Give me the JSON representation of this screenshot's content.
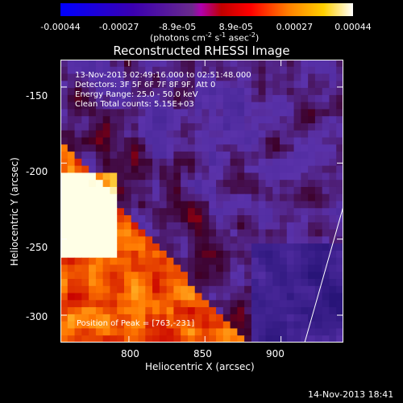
{
  "colorbar": {
    "tick_labels": [
      "-0.00044",
      "-0.00027",
      "-8.9e-05",
      "8.9e-05",
      "0.00027",
      "0.00044"
    ],
    "unit_label": "(photons cm",
    "unit_exp1": "-2",
    "unit_mid": " s",
    "unit_exp2": "-1",
    "unit_mid2": " asec",
    "unit_exp3": "-2",
    "unit_end": ")"
  },
  "chart_data": {
    "type": "heatmap",
    "title": "Reconstructed RHESSI Image",
    "xlabel": "Heliocentric X (arcsec)",
    "ylabel": "Heliocentric Y (arcsec)",
    "x_ticks": [
      800,
      850,
      900
    ],
    "y_ticks": [
      -150,
      -200,
      -250,
      -300
    ],
    "xlim": [
      755,
      941
    ],
    "ylim": [
      -318,
      -132
    ],
    "value_range": [
      -0.00044,
      0.00044
    ],
    "peak": [
      763,
      -231
    ],
    "annotations": [
      "13-Nov-2013 02:49:16.000 to 02:51:48.000",
      "Detectors: 3F 5F 6F 7F 8F 9F, Att 0",
      "Energy Range: 25.0 - 50.0 keV",
      "Clean    Total counts: 5.15E+03"
    ],
    "peak_label": "Position of Peak = [763,-231]"
  },
  "timestamp": "14-Nov-2013 18:41"
}
